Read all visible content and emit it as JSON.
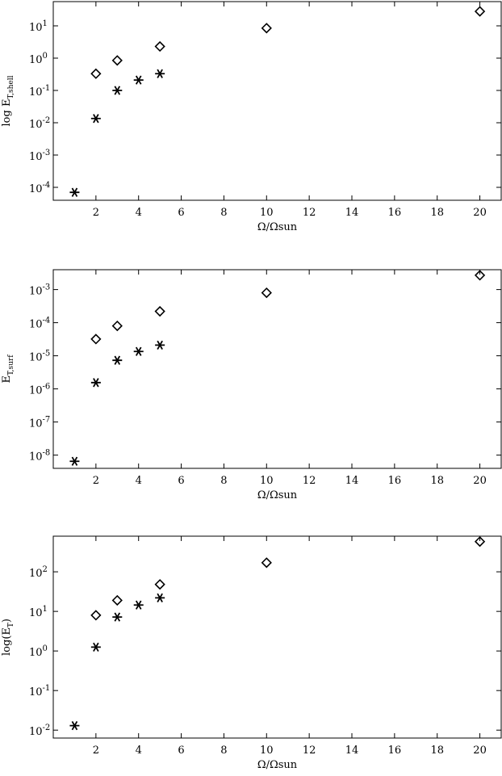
{
  "chart_data": [
    {
      "type": "scatter",
      "ylabel": "log E",
      "ylabel_sub": "T,shell",
      "xlabel": "Ω/Ωsun",
      "xlim": [
        0,
        21
      ],
      "ylim_log10": [
        -4.4,
        1.75
      ],
      "x_ticks": [
        2,
        4,
        6,
        8,
        10,
        12,
        14,
        16,
        18,
        20
      ],
      "y_ticks": [
        {
          "value": 0.0001,
          "base": "10",
          "exp": "-4"
        },
        {
          "value": 0.001,
          "base": "10",
          "exp": "-3"
        },
        {
          "value": 0.01,
          "base": "10",
          "exp": "-2"
        },
        {
          "value": 0.1,
          "base": "10",
          "exp": "-1"
        },
        {
          "value": 1.0,
          "base": "10",
          "exp": "0"
        },
        {
          "value": 10.0,
          "base": "10",
          "exp": "1"
        }
      ],
      "grid": false,
      "series": [
        {
          "marker": "diamond",
          "points": [
            [
              2,
              0.33
            ],
            [
              3,
              0.85
            ],
            [
              5,
              2.3
            ],
            [
              10,
              8.5
            ],
            [
              20,
              28
            ]
          ]
        },
        {
          "marker": "asterisk",
          "points": [
            [
              1,
              7e-05
            ],
            [
              2,
              0.0135
            ],
            [
              3,
              0.1
            ],
            [
              4,
              0.21
            ],
            [
              5,
              0.33
            ]
          ]
        }
      ]
    },
    {
      "type": "scatter",
      "ylabel": "E",
      "ylabel_sub": "T,surf",
      "xlabel": "Ω/Ωsun",
      "xlim": [
        0,
        21
      ],
      "ylim_log10": [
        -8.4,
        -2.4
      ],
      "x_ticks": [
        2,
        4,
        6,
        8,
        10,
        12,
        14,
        16,
        18,
        20
      ],
      "y_ticks": [
        {
          "value": 1e-08,
          "base": "10",
          "exp": "-8"
        },
        {
          "value": 1e-07,
          "base": "10",
          "exp": "-7"
        },
        {
          "value": 1e-06,
          "base": "10",
          "exp": "-6"
        },
        {
          "value": 1e-05,
          "base": "10",
          "exp": "-5"
        },
        {
          "value": 0.0001,
          "base": "10",
          "exp": "-4"
        },
        {
          "value": 0.001,
          "base": "10",
          "exp": "-3"
        }
      ],
      "grid": false,
      "series": [
        {
          "marker": "diamond",
          "points": [
            [
              2,
              3.2e-05
            ],
            [
              3,
              8e-05
            ],
            [
              5,
              0.00022
            ],
            [
              10,
              0.0008
            ],
            [
              20,
              0.0027
            ]
          ]
        },
        {
          "marker": "asterisk",
          "points": [
            [
              1,
              6.5e-09
            ],
            [
              2,
              1.55e-06
            ],
            [
              3,
              7.3e-06
            ],
            [
              4,
              1.35e-05
            ],
            [
              5,
              2.1e-05
            ]
          ]
        }
      ]
    },
    {
      "type": "scatter",
      "ylabel": "log(E",
      "ylabel_sub": "T",
      "ylabel_end": ")",
      "xlabel": "Ω/Ωsun",
      "xlim": [
        0,
        21
      ],
      "ylim_log10": [
        -2.2,
        2.9
      ],
      "x_ticks": [
        2,
        4,
        6,
        8,
        10,
        12,
        14,
        16,
        18,
        20
      ],
      "y_ticks": [
        {
          "value": 0.01,
          "base": "10",
          "exp": "-2"
        },
        {
          "value": 0.1,
          "base": "10",
          "exp": "-1"
        },
        {
          "value": 1.0,
          "base": "10",
          "exp": "0"
        },
        {
          "value": 10.0,
          "base": "10",
          "exp": "1"
        },
        {
          "value": 100.0,
          "base": "10",
          "exp": "2"
        }
      ],
      "grid": false,
      "series": [
        {
          "marker": "diamond",
          "points": [
            [
              2,
              8
            ],
            [
              3,
              19
            ],
            [
              5,
              48
            ],
            [
              10,
              170
            ],
            [
              20,
              580
            ]
          ]
        },
        {
          "marker": "asterisk",
          "points": [
            [
              1,
              0.013
            ],
            [
              2,
              1.25
            ],
            [
              3,
              7.2
            ],
            [
              4,
              14.5
            ],
            [
              5,
              22
            ]
          ]
        }
      ]
    }
  ]
}
